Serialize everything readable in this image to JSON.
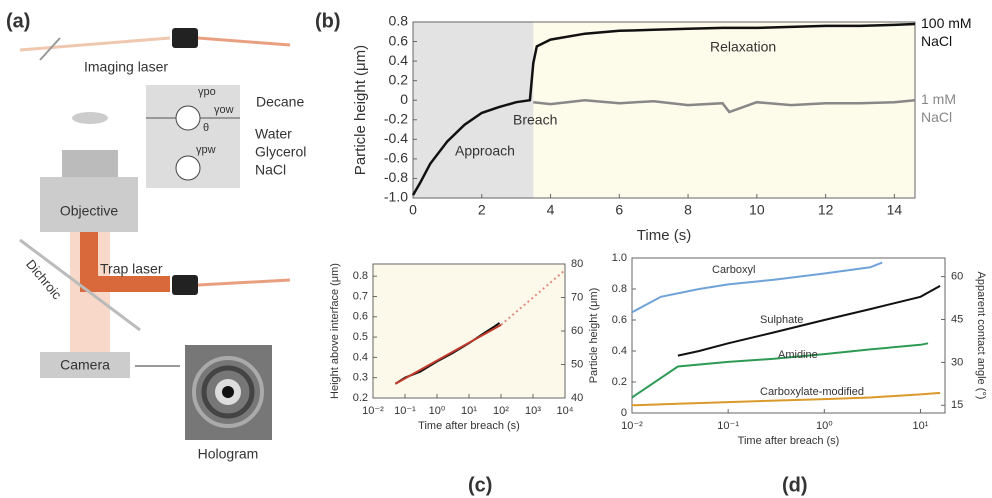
{
  "diagram": {
    "panel": "(a)",
    "imaging_laser": "Imaging laser",
    "decane": "Decane",
    "water": "Water",
    "glycerol": "Glycerol",
    "nacl": "NaCl",
    "gamma_po": "γpo",
    "gamma_ow": "γow",
    "theta": "θ",
    "gamma_pw": "γpw",
    "objective": "Objective",
    "dichroic": "Dichroic",
    "trap_laser": "Trap laser",
    "camera": "Camera",
    "hologram": "Hologram"
  },
  "chart_data": [
    {
      "type": "line",
      "panel": "(b)",
      "xlabel": "Time (s)",
      "ylabel": "Particle height (μm)",
      "xlim": [
        0,
        14.6
      ],
      "xticks": [
        0,
        2,
        4,
        6,
        8,
        10,
        12,
        14
      ],
      "ylim": [
        -1.0,
        0.8
      ],
      "yticks": [
        {
          "value": -1.0,
          "label": "-1.0"
        },
        -0.8,
        -0.6,
        -0.4,
        -0.2,
        0,
        0.2,
        0.4,
        0.6,
        0.8
      ],
      "background": "#fdfbe9",
      "shaded_xlim": [
        0,
        3.5
      ],
      "shade_color": "#e3e3e3",
      "annotations": [
        "Approach",
        "Breach",
        "Relaxation"
      ],
      "annotation_color": "#d0603a",
      "series": [
        {
          "name": "100 mM NaCl",
          "color": "#111111",
          "x": [
            0,
            0.2,
            0.5,
            1,
            1.5,
            2,
            2.5,
            3,
            3.4,
            3.5,
            3.6,
            4,
            5,
            6,
            7,
            8,
            9,
            10,
            11,
            12,
            13,
            14,
            14.6
          ],
          "values": [
            -0.97,
            -0.85,
            -0.65,
            -0.42,
            -0.25,
            -0.13,
            -0.07,
            -0.02,
            0.0,
            0.38,
            0.55,
            0.62,
            0.68,
            0.71,
            0.72,
            0.73,
            0.74,
            0.74,
            0.75,
            0.76,
            0.76,
            0.77,
            0.78
          ]
        },
        {
          "name": "1 mM NaCl",
          "color": "#888888",
          "x": [
            3.5,
            4,
            5,
            6,
            7,
            8,
            9,
            9.2,
            10,
            11,
            12,
            13,
            14,
            14.6
          ],
          "values": [
            -0.02,
            -0.04,
            0,
            -0.03,
            -0.01,
            -0.05,
            -0.03,
            -0.12,
            -0.02,
            -0.05,
            -0.03,
            -0.03,
            -0.02,
            0.0
          ]
        }
      ]
    },
    {
      "type": "line",
      "panel": "(c)",
      "xlabel": "Time after breach (s)",
      "ylabel": "Height above interface (μm)",
      "xscale": "log",
      "xlim": [
        0.01,
        10000
      ],
      "xticks": [
        {
          "value": 0.01,
          "label": "10⁻²"
        },
        {
          "value": 0.1,
          "label": "10⁻¹"
        },
        {
          "value": 1,
          "label": "10⁰"
        },
        {
          "value": 10,
          "label": "10¹"
        },
        {
          "value": 100,
          "label": "10²"
        },
        {
          "value": 1000,
          "label": "10³"
        },
        {
          "value": 10000,
          "label": "10⁴"
        }
      ],
      "ylim": [
        0.2,
        0.86
      ],
      "yticks": [
        0.2,
        0.3,
        0.4,
        0.5,
        0.6,
        0.7,
        0.8
      ],
      "y2lim": [
        40,
        80
      ],
      "y2ticks": [
        40,
        50,
        60,
        70,
        80
      ],
      "background": "#fdf9ea",
      "series": [
        {
          "color": "#111111",
          "x": [
            0.05,
            0.1,
            0.3,
            1,
            3,
            10,
            30,
            60,
            90
          ],
          "values": [
            0.27,
            0.3,
            0.33,
            0.38,
            0.42,
            0.47,
            0.52,
            0.55,
            0.57
          ]
        },
        {
          "color": "#c0392b",
          "x": [
            0.05,
            100
          ],
          "values": [
            0.27,
            0.56
          ]
        },
        {
          "color": "#e08a80",
          "dashed": true,
          "x": [
            100,
            10000
          ],
          "values": [
            0.56,
            0.83
          ]
        }
      ]
    },
    {
      "type": "line",
      "panel": "(d)",
      "xlabel": "Time after breach (s)",
      "ylabel": "Particle height (μm)",
      "y2label": "Apparent contact angle (°)",
      "xscale": "log",
      "xlim": [
        0.01,
        18
      ],
      "xticks": [
        {
          "value": 0.01,
          "label": "10⁻²"
        },
        {
          "value": 0.1,
          "label": "10⁻¹"
        },
        {
          "value": 1,
          "label": "10⁰"
        },
        {
          "value": 10,
          "label": "10¹"
        }
      ],
      "ylim": [
        0,
        1.0
      ],
      "yticks": [
        0,
        0.2,
        0.4,
        0.6,
        0.8,
        {
          "value": 1.0,
          "label": "1.0"
        }
      ],
      "y2lim": [
        12.3,
        66.5
      ],
      "y2ticks": [
        15,
        30,
        45,
        60
      ],
      "background": "#ffffff",
      "series": [
        {
          "name": "Carboxyl",
          "color": "#6fa3d8",
          "x": [
            0.01,
            0.02,
            0.05,
            0.1,
            0.3,
            1,
            3,
            4
          ],
          "values": [
            0.65,
            0.75,
            0.8,
            0.83,
            0.86,
            0.9,
            0.94,
            0.97
          ]
        },
        {
          "name": "Sulphate",
          "color": "#111111",
          "x": [
            0.03,
            0.05,
            0.1,
            0.3,
            1,
            3,
            10,
            16
          ],
          "values": [
            0.37,
            0.4,
            0.45,
            0.52,
            0.6,
            0.67,
            0.75,
            0.82
          ]
        },
        {
          "name": "Amidine",
          "color": "#2e9a55",
          "x": [
            0.01,
            0.03,
            0.1,
            0.3,
            1,
            3,
            10,
            12
          ],
          "values": [
            0.1,
            0.3,
            0.33,
            0.35,
            0.38,
            0.41,
            0.44,
            0.45
          ]
        },
        {
          "name": "Carboxylate-modified",
          "color": "#d99a2b",
          "x": [
            0.01,
            0.03,
            0.1,
            0.3,
            1,
            3,
            10,
            16
          ],
          "values": [
            0.05,
            0.06,
            0.07,
            0.08,
            0.09,
            0.1,
            0.12,
            0.13
          ]
        }
      ]
    }
  ]
}
